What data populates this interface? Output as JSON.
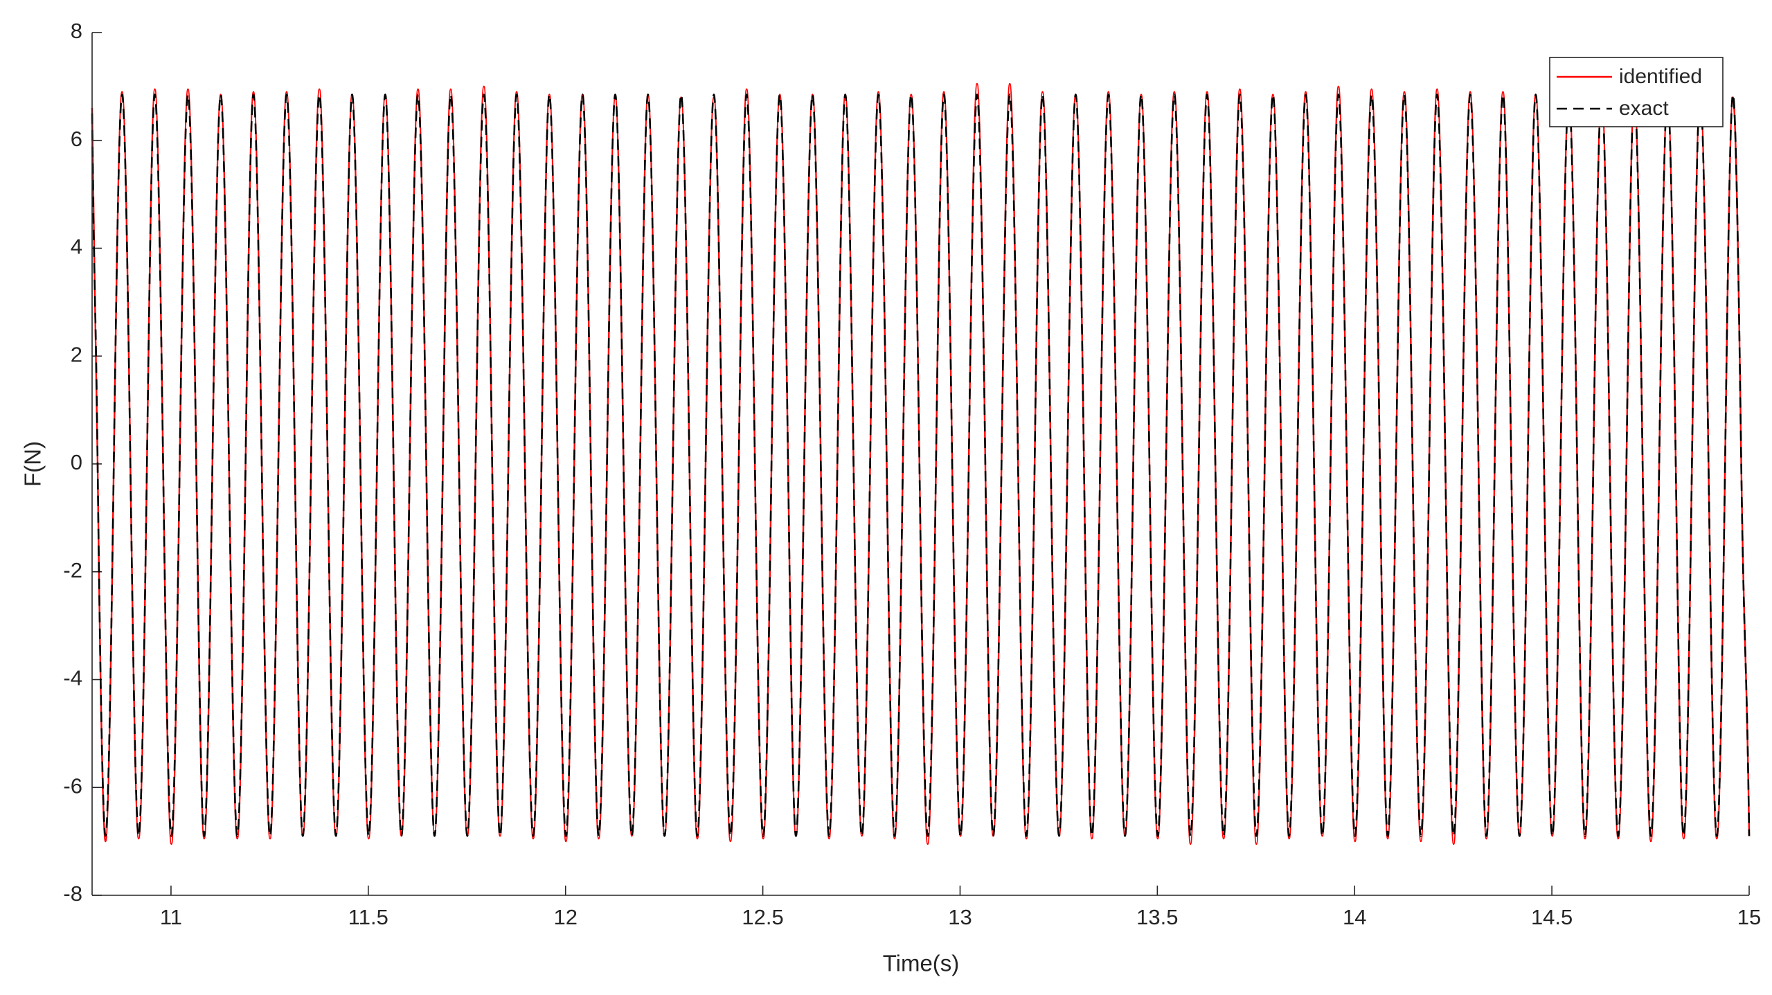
{
  "chart_data": {
    "type": "line",
    "xlabel": "Time(s)",
    "ylabel": "F(N)",
    "xlim": [
      10.8,
      15
    ],
    "ylim": [
      -8,
      8
    ],
    "xticks": [
      11,
      11.5,
      12,
      12.5,
      13,
      13.5,
      14,
      14.5,
      15
    ],
    "yticks": [
      -8,
      -6,
      -4,
      -2,
      0,
      2,
      4,
      6,
      8
    ],
    "legend": "upper right",
    "x": [
      10.8,
      10.814,
      10.834,
      10.855,
      10.876,
      10.897,
      10.918,
      10.939,
      10.959,
      10.98,
      11.001,
      11.022,
      11.043,
      11.064,
      11.084,
      11.105,
      11.126,
      11.147,
      11.168,
      11.189,
      11.209,
      11.23,
      11.251,
      11.272,
      11.293,
      11.314,
      11.334,
      11.355,
      11.376,
      11.397,
      11.418,
      11.439,
      11.459,
      11.48,
      11.501,
      11.522,
      11.543,
      11.564,
      11.584,
      11.605,
      11.626,
      11.647,
      11.668,
      11.689,
      11.709,
      11.73,
      11.751,
      11.772,
      11.793,
      11.814,
      11.834,
      11.855,
      11.876,
      11.897,
      11.918,
      11.939,
      11.959,
      11.98,
      12.001,
      12.022,
      12.043,
      12.064,
      12.084,
      12.105,
      12.126,
      12.147,
      12.168,
      12.189,
      12.209,
      12.23,
      12.251,
      12.272,
      12.293,
      12.314,
      12.334,
      12.355,
      12.376,
      12.397,
      12.418,
      12.439,
      12.459,
      12.48,
      12.501,
      12.522,
      12.543,
      12.564,
      12.584,
      12.605,
      12.626,
      12.647,
      12.668,
      12.689,
      12.709,
      12.73,
      12.751,
      12.772,
      12.793,
      12.814,
      12.834,
      12.855,
      12.876,
      12.897,
      12.918,
      12.939,
      12.959,
      12.98,
      13.001,
      13.022,
      13.043,
      13.064,
      13.084,
      13.105,
      13.126,
      13.147,
      13.168,
      13.189,
      13.209,
      13.23,
      13.251,
      13.272,
      13.293,
      13.314,
      13.334,
      13.355,
      13.376,
      13.397,
      13.418,
      13.439,
      13.459,
      13.48,
      13.501,
      13.522,
      13.543,
      13.564,
      13.584,
      13.605,
      13.626,
      13.647,
      13.668,
      13.689,
      13.709,
      13.73,
      13.751,
      13.772,
      13.793,
      13.814,
      13.834,
      13.855,
      13.876,
      13.897,
      13.918,
      13.939,
      13.959,
      13.98,
      14.001,
      14.022,
      14.043,
      14.064,
      14.084,
      14.105,
      14.126,
      14.147,
      14.168,
      14.189,
      14.209,
      14.23,
      14.251,
      14.272,
      14.293,
      14.314,
      14.334,
      14.355,
      14.376,
      14.397,
      14.418,
      14.439,
      14.459,
      14.48,
      14.501,
      14.522,
      14.543,
      14.564,
      14.584,
      14.605,
      14.626,
      14.647,
      14.668,
      14.689,
      14.709,
      14.73,
      14.751,
      14.772,
      14.793,
      14.814,
      14.834,
      14.855,
      14.876,
      14.897,
      14.918,
      14.939,
      14.959,
      14.98,
      15
    ],
    "series": [
      {
        "name": "identified",
        "color": "#ff0000",
        "dash": false,
        "values": [
          6.6,
          0,
          -7.0,
          0,
          6.9,
          0,
          -6.95,
          0,
          6.95,
          0,
          -7.05,
          0,
          6.95,
          0,
          -6.95,
          0,
          6.85,
          0,
          -6.95,
          0,
          6.9,
          0,
          -6.95,
          0,
          6.9,
          0,
          -6.9,
          0,
          6.95,
          0,
          -6.9,
          0,
          6.85,
          0,
          -6.95,
          0,
          6.85,
          0,
          -6.9,
          0,
          6.95,
          0,
          -6.85,
          0,
          6.95,
          0,
          -6.9,
          0,
          7.0,
          0,
          -6.9,
          0,
          6.9,
          0,
          -6.95,
          0,
          6.85,
          0,
          -7.0,
          0,
          6.85,
          0,
          -6.95,
          0,
          6.8,
          0,
          -6.9,
          0,
          6.85,
          0,
          -6.9,
          0,
          6.8,
          0,
          -6.95,
          0,
          6.8,
          0,
          -7.0,
          0,
          6.95,
          0,
          -6.95,
          0,
          6.85,
          0,
          -6.9,
          0,
          6.85,
          0,
          -6.95,
          0,
          6.85,
          0,
          -6.9,
          0,
          6.9,
          0,
          -6.95,
          0,
          6.85,
          0,
          -7.05,
          0,
          6.9,
          0,
          -6.9,
          0,
          7.05,
          0,
          -6.9,
          0,
          7.05,
          0,
          -6.95,
          0,
          6.9,
          0,
          -6.9,
          0,
          6.85,
          0,
          -6.95,
          0,
          6.9,
          0,
          -6.9,
          0,
          6.85,
          0,
          -6.95,
          0,
          6.9,
          0,
          -7.05,
          0,
          6.9,
          0,
          -6.95,
          0,
          6.95,
          0,
          -7.05,
          0,
          6.85,
          0,
          -6.95,
          0,
          6.9,
          0,
          -6.9,
          0,
          7.0,
          0,
          -7.0,
          0,
          6.95,
          0,
          -6.95,
          0,
          6.9,
          0,
          -7.0,
          0,
          6.95,
          0,
          -7.05,
          0,
          6.9,
          0,
          -6.95,
          0,
          6.9,
          0,
          -6.9,
          0,
          6.85,
          0,
          -6.9,
          0,
          6.9,
          0,
          -6.95,
          0,
          6.85,
          0,
          -6.95,
          0,
          6.85,
          0,
          -7.0,
          0,
          6.8,
          0,
          -6.95,
          0,
          6.85,
          0,
          -6.95,
          0,
          6.8,
          0,
          -6.9
        ]
      },
      {
        "name": "exact",
        "color": "#000000",
        "dash": true,
        "values": [
          6.5,
          0,
          -6.9,
          0,
          6.85,
          0,
          -6.9,
          0,
          6.85,
          0,
          -6.9,
          0,
          6.85,
          0,
          -6.9,
          0,
          6.85,
          0,
          -6.9,
          0,
          6.85,
          0,
          -6.9,
          0,
          6.85,
          0,
          -6.9,
          0,
          6.85,
          0,
          -6.9,
          0,
          6.85,
          0,
          -6.9,
          0,
          6.85,
          0,
          -6.9,
          0,
          6.85,
          0,
          -6.9,
          0,
          6.85,
          0,
          -6.9,
          0,
          6.85,
          0,
          -6.9,
          0,
          6.85,
          0,
          -6.9,
          0,
          6.85,
          0,
          -6.9,
          0,
          6.85,
          0,
          -6.9,
          0,
          6.85,
          0,
          -6.9,
          0,
          6.85,
          0,
          -6.9,
          0,
          6.85,
          0,
          -6.9,
          0,
          6.85,
          0,
          -6.9,
          0,
          6.85,
          0,
          -6.9,
          0,
          6.85,
          0,
          -6.9,
          0,
          6.85,
          0,
          -6.9,
          0,
          6.85,
          0,
          -6.9,
          0,
          6.85,
          0,
          -6.9,
          0,
          6.85,
          0,
          -6.9,
          0,
          6.85,
          0,
          -6.9,
          0,
          6.85,
          0,
          -6.9,
          0,
          6.85,
          0,
          -6.9,
          0,
          6.85,
          0,
          -6.9,
          0,
          6.85,
          0,
          -6.9,
          0,
          6.85,
          0,
          -6.9,
          0,
          6.85,
          0,
          -6.9,
          0,
          6.85,
          0,
          -6.9,
          0,
          6.85,
          0,
          -6.9,
          0,
          6.85,
          0,
          -6.9,
          0,
          6.85,
          0,
          -6.9,
          0,
          6.85,
          0,
          -6.9,
          0,
          6.85,
          0,
          -6.9,
          0,
          6.85,
          0,
          -6.9,
          0,
          6.85,
          0,
          -6.9,
          0,
          6.85,
          0,
          -6.9,
          0,
          6.85,
          0,
          -6.9,
          0,
          6.85,
          0,
          -6.9,
          0,
          6.85,
          0,
          -6.9,
          0,
          6.85,
          0,
          -6.9,
          0,
          6.85,
          0,
          -6.9,
          0,
          6.85,
          0,
          -6.9,
          0,
          6.85,
          0,
          -6.9,
          0,
          6.85,
          0,
          -6.9,
          0,
          6.85,
          0,
          -6.9
        ]
      }
    ]
  }
}
